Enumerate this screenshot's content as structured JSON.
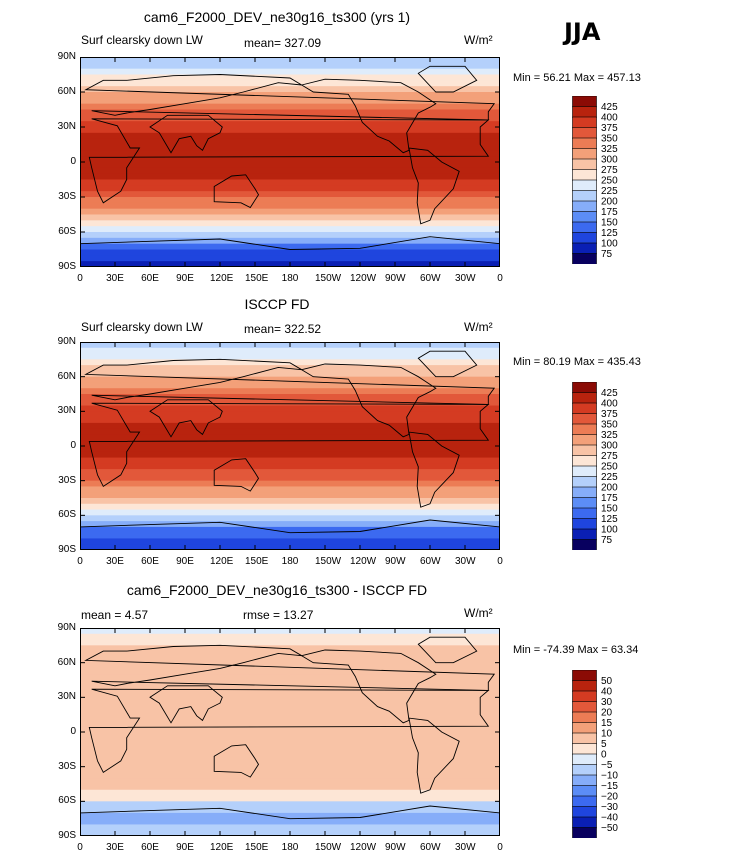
{
  "season": "JJA",
  "units": "W/m²",
  "x_ticks": [
    "0",
    "30E",
    "60E",
    "90E",
    "120E",
    "150E",
    "180",
    "150W",
    "120W",
    "90W",
    "60W",
    "30W",
    "0"
  ],
  "y_ticks": [
    "90N",
    "60N",
    "30N",
    "0",
    "30S",
    "60S",
    "90S"
  ],
  "panels": [
    {
      "title": "cam6_F2000_DEV_ne30g16_ts300 (yrs 1)",
      "left_text": "Surf clearsky down LW",
      "center_text": "mean= 327.09",
      "minmax": "Min =  56.21 Max = 457.13"
    },
    {
      "title": "ISCCP FD",
      "left_text": "Surf clearsky down LW",
      "center_text": "mean= 322.52",
      "minmax": "Min =  80.19 Max = 435.43"
    },
    {
      "title": "cam6_F2000_DEV_ne30g16_ts300 - ISCCP FD",
      "left_text": "mean =    4.57",
      "center_text": "rmse =   13.27",
      "minmax": "Min = -74.39 Max =  63.34"
    }
  ],
  "colorbars": [
    {
      "labels": [
        "425",
        "400",
        "375",
        "350",
        "325",
        "300",
        "275",
        "250",
        "225",
        "200",
        "175",
        "150",
        "125",
        "100",
        "75"
      ]
    },
    {
      "labels": [
        "425",
        "400",
        "375",
        "350",
        "325",
        "300",
        "275",
        "250",
        "225",
        "200",
        "175",
        "150",
        "125",
        "100",
        "75"
      ]
    },
    {
      "labels": [
        "50",
        "40",
        "30",
        "20",
        "15",
        "10",
        "5",
        "0",
        "−5",
        "−10",
        "−15",
        "−20",
        "−30",
        "−40",
        "−50"
      ]
    }
  ],
  "colors": {
    "scale": [
      "#08005f",
      "#0a1fb4",
      "#1f45de",
      "#3c6af0",
      "#5c8df6",
      "#86adf9",
      "#b4d0fb",
      "#dfecfb",
      "#fde6d6",
      "#f8c3a6",
      "#f3a079",
      "#ec7c55",
      "#e2583a",
      "#d43b22",
      "#b8230e",
      "#8b0b05"
    ]
  },
  "chart_data": [
    {
      "type": "heatmap",
      "title": "cam6_F2000_DEV_ne30g16_ts300 (yrs 1)",
      "xlabel": "",
      "ylabel": "",
      "x": [
        "0",
        "30E",
        "60E",
        "90E",
        "120E",
        "150E",
        "180",
        "150W",
        "120W",
        "90W",
        "60W",
        "30W",
        "0"
      ],
      "y": [
        "90N",
        "60N",
        "30N",
        "0",
        "30S",
        "60S",
        "90S"
      ],
      "zlim": [
        75,
        425
      ],
      "levels": [
        75,
        100,
        125,
        150,
        175,
        200,
        225,
        250,
        275,
        300,
        325,
        350,
        375,
        400,
        425
      ],
      "min": 56.21,
      "max": 457.13,
      "mean": 327.09,
      "lat_profile": [
        [
          90,
          190
        ],
        [
          75,
          255
        ],
        [
          60,
          290
        ],
        [
          45,
          350
        ],
        [
          30,
          390
        ],
        [
          15,
          415
        ],
        [
          0,
          420
        ],
        [
          -15,
          400
        ],
        [
          -30,
          355
        ],
        [
          -45,
          305
        ],
        [
          -55,
          255
        ],
        [
          -65,
          195
        ],
        [
          -75,
          120
        ],
        [
          -90,
          95
        ]
      ]
    },
    {
      "type": "heatmap",
      "title": "ISCCP FD",
      "xlabel": "",
      "ylabel": "",
      "x": [
        "0",
        "30E",
        "60E",
        "90E",
        "120E",
        "150E",
        "180",
        "150W",
        "120W",
        "90W",
        "60W",
        "30W",
        "0"
      ],
      "y": [
        "90N",
        "60N",
        "30N",
        "0",
        "30S",
        "60S",
        "90S"
      ],
      "zlim": [
        75,
        425
      ],
      "levels": [
        75,
        100,
        125,
        150,
        175,
        200,
        225,
        250,
        275,
        300,
        325,
        350,
        375,
        400,
        425
      ],
      "min": 80.19,
      "max": 435.43,
      "mean": 322.52,
      "lat_profile": [
        [
          90,
          215
        ],
        [
          75,
          255
        ],
        [
          60,
          295
        ],
        [
          45,
          345
        ],
        [
          30,
          385
        ],
        [
          15,
          410
        ],
        [
          0,
          415
        ],
        [
          -15,
          395
        ],
        [
          -30,
          345
        ],
        [
          -45,
          295
        ],
        [
          -55,
          250
        ],
        [
          -65,
          190
        ],
        [
          -75,
          130
        ],
        [
          -90,
          105
        ]
      ]
    },
    {
      "type": "heatmap",
      "title": "cam6_F2000_DEV_ne30g16_ts300 - ISCCP FD",
      "xlabel": "",
      "ylabel": "",
      "x": [
        "0",
        "30E",
        "60E",
        "90E",
        "120E",
        "150E",
        "180",
        "150W",
        "120W",
        "90W",
        "60W",
        "30W",
        "0"
      ],
      "y": [
        "90N",
        "60N",
        "30N",
        "0",
        "30S",
        "60S",
        "90S"
      ],
      "zlim": [
        -50,
        50
      ],
      "levels": [
        -50,
        -40,
        -30,
        -20,
        -15,
        -10,
        -5,
        0,
        5,
        10,
        15,
        20,
        30,
        40,
        50
      ],
      "min": -74.39,
      "max": 63.34,
      "mean": 4.57,
      "rmse": 13.27,
      "lat_profile": [
        [
          90,
          -5
        ],
        [
          75,
          5
        ],
        [
          60,
          10
        ],
        [
          45,
          8
        ],
        [
          30,
          6
        ],
        [
          15,
          8
        ],
        [
          0,
          6
        ],
        [
          -15,
          9
        ],
        [
          -30,
          10
        ],
        [
          -45,
          7
        ],
        [
          -55,
          3
        ],
        [
          -65,
          -8
        ],
        [
          -75,
          -12
        ],
        [
          -90,
          -5
        ]
      ]
    }
  ]
}
